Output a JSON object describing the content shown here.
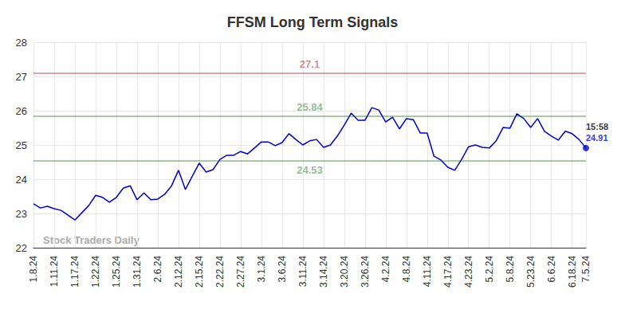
{
  "chart_data": {
    "type": "line",
    "title": "FFSM Long Term Signals",
    "watermark": "Stock Traders Daily",
    "color": "#0000cc",
    "grid": true,
    "categories": [
      "1.8.24",
      null,
      null,
      "1.11.24",
      null,
      null,
      "1.17.24",
      null,
      null,
      "1.22.24",
      null,
      null,
      "1.25.24",
      null,
      null,
      "1.31.24",
      null,
      null,
      "2.6.24",
      null,
      null,
      "2.12.24",
      null,
      null,
      "2.15.24",
      null,
      null,
      "2.22.24",
      null,
      null,
      "2.27.24",
      null,
      null,
      "3.1.24",
      null,
      null,
      "3.6.24",
      null,
      null,
      "3.11.24",
      null,
      null,
      "3.14.24",
      null,
      null,
      "3.20.24",
      null,
      null,
      "3.26.24",
      null,
      null,
      "4.2.24",
      null,
      null,
      "4.8.24",
      null,
      null,
      "4.11.24",
      null,
      null,
      "4.17.24",
      null,
      null,
      "4.23.24",
      null,
      null,
      "5.2.24",
      null,
      null,
      "5.8.24",
      null,
      null,
      "5.23.24",
      null,
      null,
      "6.6.24",
      null,
      null,
      "6.18.24",
      null,
      "7.5.24"
    ],
    "values": [
      23.28,
      23.16,
      23.21,
      23.14,
      23.09,
      22.95,
      22.81,
      23.02,
      23.23,
      23.53,
      23.47,
      23.33,
      23.47,
      23.74,
      23.81,
      23.4,
      23.6,
      23.4,
      23.42,
      23.56,
      23.81,
      24.26,
      23.7,
      24.09,
      24.47,
      24.21,
      24.28,
      24.58,
      24.7,
      24.7,
      24.81,
      24.74,
      24.91,
      25.09,
      25.09,
      24.98,
      25.07,
      25.33,
      25.16,
      25.0,
      25.12,
      25.16,
      24.93,
      25.0,
      25.26,
      25.58,
      25.93,
      25.72,
      25.72,
      26.09,
      26.02,
      25.67,
      25.81,
      25.47,
      25.77,
      25.74,
      25.35,
      25.35,
      24.67,
      24.56,
      24.35,
      24.26,
      24.58,
      24.95,
      25.0,
      24.93,
      24.91,
      25.12,
      25.51,
      25.49,
      25.91,
      25.77,
      25.51,
      25.77,
      25.4,
      25.26,
      25.14,
      25.4,
      25.33,
      25.16,
      24.91
    ],
    "ylim": [
      22,
      28
    ],
    "yticks": [
      22,
      23,
      24,
      25,
      26,
      27,
      28
    ],
    "annotations": [
      {
        "value": 27.1,
        "label": "27.1",
        "color": "#8b0000"
      },
      {
        "value": 25.84,
        "label": "25.84",
        "color": "#006400"
      },
      {
        "value": 24.53,
        "label": "24.53",
        "color": "#006400"
      }
    ],
    "markers": [
      {
        "x": "7.5.24",
        "value": 24.91,
        "labels": [
          "15:58",
          "24.91"
        ]
      }
    ]
  }
}
